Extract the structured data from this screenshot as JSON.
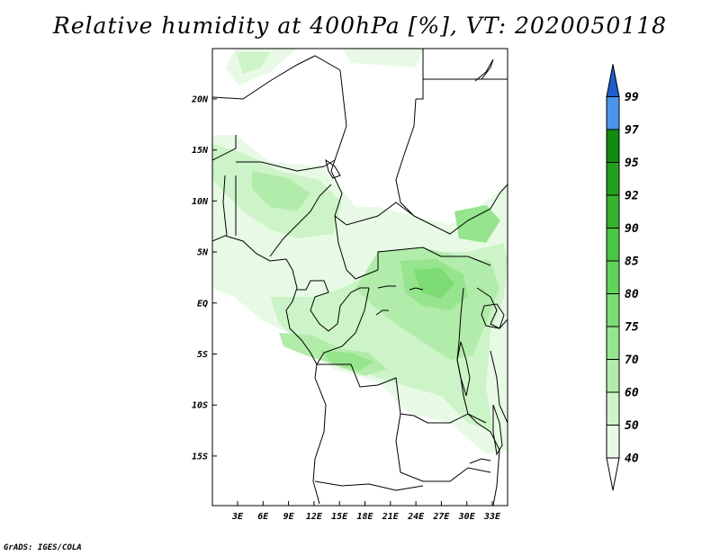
{
  "title": "Relative humidity at 400hPa [%], VT: 2020050118",
  "credit": "GrADS: IGES/COLA",
  "map": {
    "lat_labels": [
      "20N",
      "15N",
      "10N",
      "5N",
      "EQ",
      "5S",
      "10S",
      "15S"
    ],
    "lon_labels": [
      "3E",
      "6E",
      "9E",
      "12E",
      "15E",
      "18E",
      "21E",
      "24E",
      "27E",
      "30E",
      "33E"
    ]
  },
  "colorbar": {
    "levels": [
      "40",
      "50",
      "60",
      "70",
      "75",
      "80",
      "85",
      "90",
      "92",
      "95",
      "97",
      "99"
    ],
    "colors": {
      "40": "#e8fae6",
      "50": "#cdf3c8",
      "60": "#b2ecaa",
      "70": "#96e48e",
      "75": "#7ddc75",
      "80": "#62d35a",
      "85": "#4bc544",
      "90": "#36b22f",
      "92": "#229e1d",
      "95": "#128a0e",
      "97": "#4a95ea",
      "99": "#2a74de",
      "top": "#1d5ccc"
    }
  }
}
